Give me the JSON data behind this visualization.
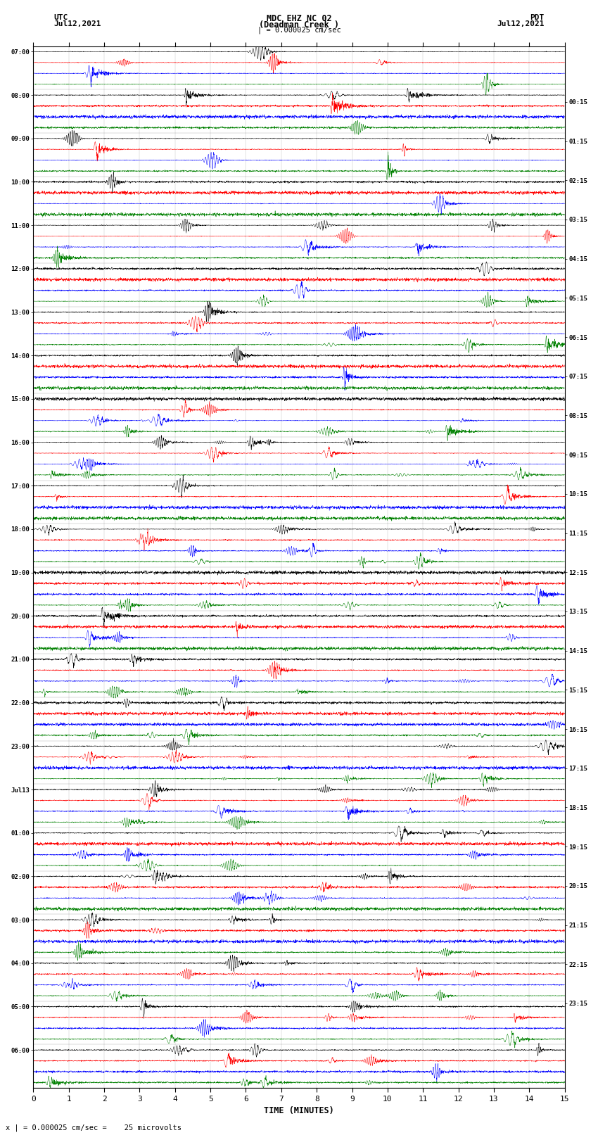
{
  "title_line1": "MDC EHZ NC 02",
  "title_line2": "(Deadman Creek )",
  "title_line3": "| = 0.000025 cm/sec",
  "left_label_top": "UTC",
  "left_label_date": "Jul12,2021",
  "right_label_top": "PDT",
  "right_label_date": "Jul12,2021",
  "xlabel": "TIME (MINUTES)",
  "footer_text": "x | = 0.000025 cm/sec =    25 microvolts",
  "utc_labels": [
    "07:00",
    "08:00",
    "09:00",
    "10:00",
    "11:00",
    "12:00",
    "13:00",
    "14:00",
    "15:00",
    "16:00",
    "17:00",
    "18:00",
    "19:00",
    "20:00",
    "21:00",
    "22:00",
    "23:00",
    "Jul13",
    "01:00",
    "02:00",
    "03:00",
    "04:00",
    "05:00",
    "06:00"
  ],
  "pdt_labels": [
    "00:15",
    "01:15",
    "02:15",
    "03:15",
    "04:15",
    "05:15",
    "06:15",
    "07:15",
    "08:15",
    "09:15",
    "10:15",
    "11:15",
    "12:15",
    "13:15",
    "14:15",
    "15:15",
    "16:15",
    "17:15",
    "18:15",
    "19:15",
    "20:15",
    "21:15",
    "22:15",
    "23:15"
  ],
  "trace_colors": [
    "black",
    "red",
    "blue",
    "green"
  ],
  "num_groups": 24,
  "traces_per_group": 4,
  "x_min": 0,
  "x_max": 15,
  "x_ticks": [
    0,
    1,
    2,
    3,
    4,
    5,
    6,
    7,
    8,
    9,
    10,
    11,
    12,
    13,
    14,
    15
  ],
  "background_color": "white",
  "seed": 42
}
